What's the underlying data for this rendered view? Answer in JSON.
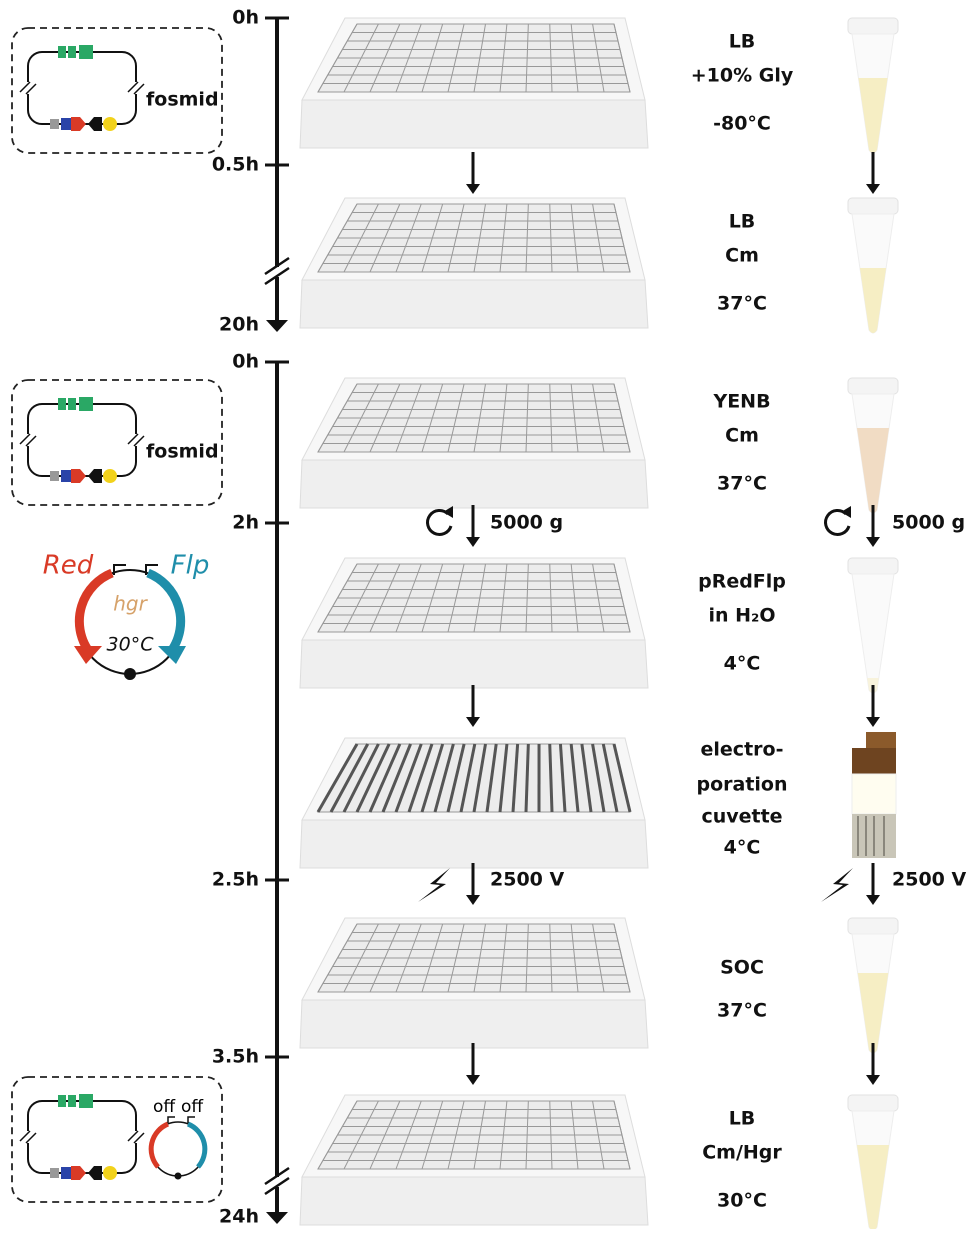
{
  "timeline_1": {
    "ticks": [
      "0h",
      "0.5h",
      "20h"
    ]
  },
  "timeline_2": {
    "ticks": [
      "0h",
      "2h",
      "2.5h",
      "3.5h",
      "24h"
    ]
  },
  "fosmid_boxes": [
    {
      "label": "fosmid"
    },
    {
      "label": "fosmid"
    },
    {
      "promoter_labels": [
        "off",
        "off"
      ]
    }
  ],
  "plasmid": {
    "left_gene": "Red",
    "right_gene": "Flp",
    "marker": "hgr",
    "temperature": "30°C"
  },
  "steps": [
    {
      "conditions": [
        "LB",
        "+10% Gly",
        "-80°C"
      ]
    },
    {
      "conditions": [
        "LB",
        "Cm",
        "37°C"
      ]
    },
    {
      "conditions": [
        "YENB",
        "Cm",
        "37°C"
      ]
    },
    {
      "conditions": [
        "pRedFlp",
        "in H₂O",
        "4°C"
      ]
    },
    {
      "conditions": [
        "electro-",
        "poration",
        "cuvette",
        "4°C"
      ]
    },
    {
      "conditions": [
        "SOC",
        "37°C"
      ]
    },
    {
      "conditions": [
        "LB",
        "Cm/Hgr",
        "30°C"
      ]
    }
  ],
  "centrifugation": {
    "plate_label": "5000 g",
    "tube_label": "5000 g"
  },
  "electroporation": {
    "plate_label": "2500 V",
    "tube_label": "2500 V"
  }
}
